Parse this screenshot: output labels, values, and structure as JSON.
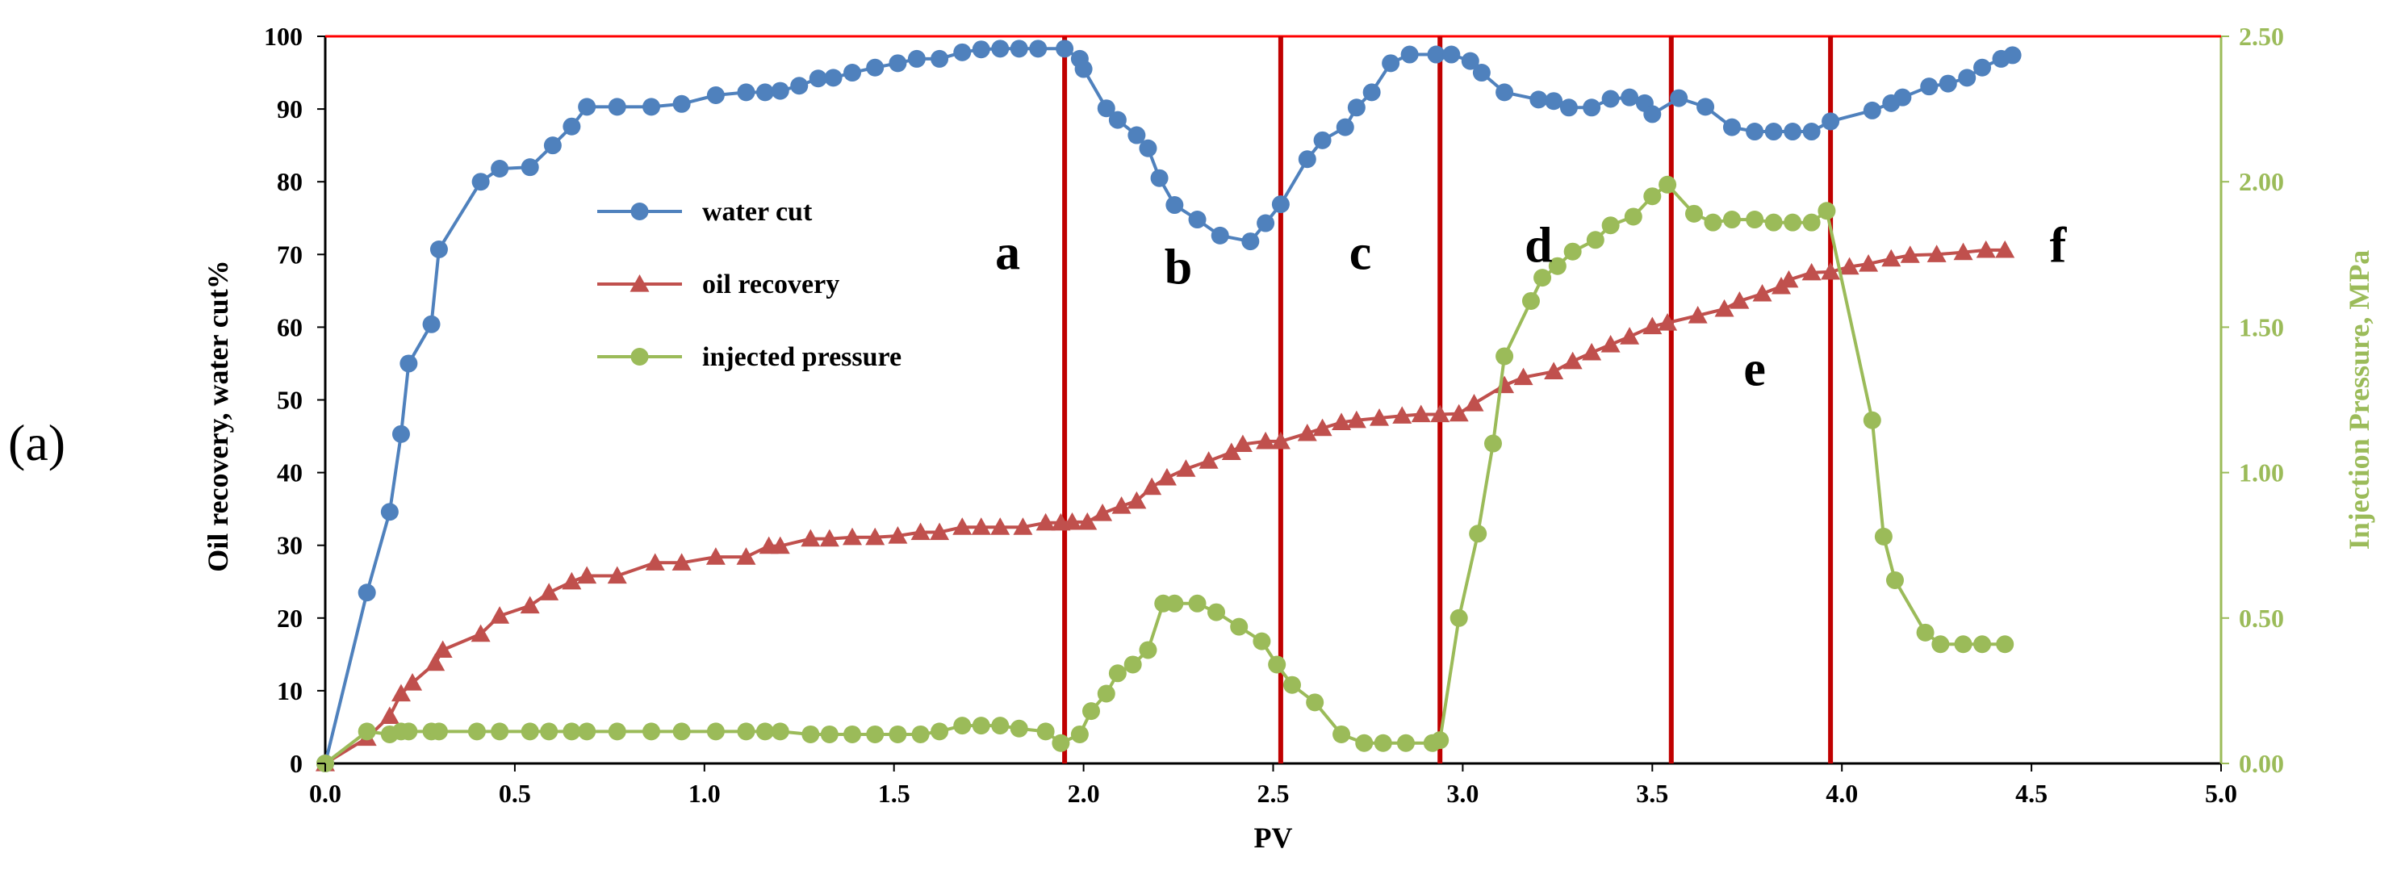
{
  "panel_label": "(a)",
  "chart_data": {
    "type": "line",
    "xlabel": "PV",
    "ylabel_left": "Oil recovery, water cut%",
    "ylabel_right": "Injection Pressure, MPa",
    "xlim": [
      0,
      5.0
    ],
    "ylim_left": [
      0,
      100
    ],
    "ylim_right": [
      0,
      2.5
    ],
    "x_ticks": [
      "0.0",
      "0.5",
      "1.0",
      "1.5",
      "2.0",
      "2.5",
      "3.0",
      "3.5",
      "4.0",
      "4.5",
      "5.0"
    ],
    "y_left_ticks": [
      "0",
      "10",
      "20",
      "30",
      "40",
      "50",
      "60",
      "70",
      "80",
      "90",
      "100"
    ],
    "y_right_ticks": [
      "0.00",
      "0.50",
      "1.00",
      "1.50",
      "2.00",
      "2.50"
    ],
    "colors": {
      "water_cut": "#4f81bd",
      "oil_recovery": "#c0504d",
      "pressure": "#9bbb59",
      "stage_line": "#c00000",
      "frame_top": "#ff0000"
    },
    "stage_boundaries": [
      1.95,
      2.52,
      2.94,
      3.55,
      3.97
    ],
    "stage_labels": [
      {
        "label": "a",
        "x": 1.8,
        "y": 68
      },
      {
        "label": "b",
        "x": 2.25,
        "y": 66
      },
      {
        "label": "c",
        "x": 2.73,
        "y": 68
      },
      {
        "label": "d",
        "x": 3.2,
        "y": 69
      },
      {
        "label": "e",
        "x": 3.77,
        "y": 52
      },
      {
        "label": "f",
        "x": 4.57,
        "y": 69
      }
    ],
    "legend": [
      {
        "key": "water_cut",
        "label": "water cut",
        "marker": "circle"
      },
      {
        "key": "oil_recovery",
        "label": "oil recovery",
        "marker": "triangle"
      },
      {
        "key": "pressure",
        "label": "injected pressure",
        "marker": "circle"
      }
    ],
    "series": [
      {
        "key": "water_cut",
        "name": "water cut",
        "axis": "left",
        "marker": "circle",
        "points": [
          [
            0.0,
            0
          ],
          [
            0.11,
            23.5
          ],
          [
            0.17,
            34.6
          ],
          [
            0.2,
            45.3
          ],
          [
            0.22,
            55
          ],
          [
            0.28,
            60.4
          ],
          [
            0.3,
            70.7
          ],
          [
            0.41,
            80
          ],
          [
            0.46,
            81.8
          ],
          [
            0.54,
            82
          ],
          [
            0.6,
            85
          ],
          [
            0.65,
            87.6
          ],
          [
            0.69,
            90.3
          ],
          [
            0.77,
            90.3
          ],
          [
            0.86,
            90.3
          ],
          [
            0.94,
            90.7
          ],
          [
            1.03,
            91.9
          ],
          [
            1.11,
            92.3
          ],
          [
            1.16,
            92.3
          ],
          [
            1.2,
            92.5
          ],
          [
            1.25,
            93.2
          ],
          [
            1.3,
            94.2
          ],
          [
            1.34,
            94.3
          ],
          [
            1.39,
            95
          ],
          [
            1.45,
            95.7
          ],
          [
            1.51,
            96.3
          ],
          [
            1.56,
            96.9
          ],
          [
            1.62,
            96.9
          ],
          [
            1.68,
            97.8
          ],
          [
            1.73,
            98.2
          ],
          [
            1.78,
            98.3
          ],
          [
            1.83,
            98.3
          ],
          [
            1.88,
            98.3
          ],
          [
            1.95,
            98.3
          ],
          [
            1.99,
            96.9
          ],
          [
            2.0,
            95.5
          ],
          [
            2.06,
            90.1
          ],
          [
            2.09,
            88.5
          ],
          [
            2.14,
            86.4
          ],
          [
            2.17,
            84.6
          ],
          [
            2.2,
            80.5
          ],
          [
            2.24,
            76.8
          ],
          [
            2.3,
            74.8
          ],
          [
            2.36,
            72.6
          ],
          [
            2.44,
            71.8
          ],
          [
            2.48,
            74.3
          ],
          [
            2.52,
            76.9
          ],
          [
            2.59,
            83.1
          ],
          [
            2.63,
            85.7
          ],
          [
            2.69,
            87.5
          ],
          [
            2.72,
            90.2
          ],
          [
            2.76,
            92.3
          ],
          [
            2.81,
            96.3
          ],
          [
            2.86,
            97.5
          ],
          [
            2.93,
            97.5
          ],
          [
            2.97,
            97.5
          ],
          [
            3.02,
            96.6
          ],
          [
            3.05,
            95
          ],
          [
            3.11,
            92.3
          ],
          [
            3.2,
            91.3
          ],
          [
            3.24,
            91.1
          ],
          [
            3.28,
            90.2
          ],
          [
            3.34,
            90.2
          ],
          [
            3.39,
            91.4
          ],
          [
            3.44,
            91.6
          ],
          [
            3.48,
            90.8
          ],
          [
            3.5,
            89.3
          ],
          [
            3.57,
            91.5
          ],
          [
            3.64,
            90.3
          ],
          [
            3.71,
            87.5
          ],
          [
            3.77,
            86.9
          ],
          [
            3.82,
            86.9
          ],
          [
            3.87,
            86.9
          ],
          [
            3.92,
            86.9
          ],
          [
            3.97,
            88.3
          ],
          [
            4.08,
            89.8
          ],
          [
            4.13,
            90.8
          ],
          [
            4.16,
            91.6
          ],
          [
            4.23,
            93.1
          ],
          [
            4.28,
            93.5
          ],
          [
            4.33,
            94.3
          ],
          [
            4.37,
            95.7
          ],
          [
            4.42,
            96.9
          ],
          [
            4.45,
            97.4
          ]
        ]
      },
      {
        "key": "oil_recovery",
        "name": "oil recovery",
        "axis": "left",
        "marker": "triangle",
        "points": [
          [
            0.0,
            0
          ],
          [
            0.11,
            3.5
          ],
          [
            0.17,
            6.5
          ],
          [
            0.2,
            9.6
          ],
          [
            0.23,
            11.1
          ],
          [
            0.29,
            13.8
          ],
          [
            0.31,
            15.6
          ],
          [
            0.41,
            17.8
          ],
          [
            0.46,
            20.3
          ],
          [
            0.54,
            21.7
          ],
          [
            0.59,
            23.5
          ],
          [
            0.65,
            25
          ],
          [
            0.69,
            25.8
          ],
          [
            0.77,
            25.8
          ],
          [
            0.87,
            27.6
          ],
          [
            0.94,
            27.6
          ],
          [
            1.03,
            28.4
          ],
          [
            1.11,
            28.4
          ],
          [
            1.17,
            29.9
          ],
          [
            1.2,
            29.9
          ],
          [
            1.28,
            30.9
          ],
          [
            1.33,
            30.9
          ],
          [
            1.39,
            31.1
          ],
          [
            1.45,
            31.1
          ],
          [
            1.51,
            31.3
          ],
          [
            1.57,
            31.8
          ],
          [
            1.62,
            31.8
          ],
          [
            1.68,
            32.5
          ],
          [
            1.73,
            32.5
          ],
          [
            1.78,
            32.5
          ],
          [
            1.84,
            32.5
          ],
          [
            1.9,
            33.1
          ],
          [
            1.94,
            33.1
          ],
          [
            1.97,
            33.2
          ],
          [
            2.01,
            33.2
          ],
          [
            2.05,
            34.4
          ],
          [
            2.1,
            35.4
          ],
          [
            2.14,
            36.1
          ],
          [
            2.18,
            38
          ],
          [
            2.22,
            39.3
          ],
          [
            2.27,
            40.5
          ],
          [
            2.33,
            41.6
          ],
          [
            2.39,
            42.8
          ],
          [
            2.42,
            43.9
          ],
          [
            2.48,
            44.3
          ],
          [
            2.52,
            44.3
          ],
          [
            2.59,
            45.4
          ],
          [
            2.63,
            46.1
          ],
          [
            2.68,
            46.9
          ],
          [
            2.72,
            47.2
          ],
          [
            2.78,
            47.5
          ],
          [
            2.84,
            47.8
          ],
          [
            2.89,
            48
          ],
          [
            2.94,
            48
          ],
          [
            2.99,
            48.1
          ],
          [
            3.03,
            49.5
          ],
          [
            3.11,
            52
          ],
          [
            3.16,
            53.1
          ],
          [
            3.24,
            53.9
          ],
          [
            3.29,
            55.3
          ],
          [
            3.34,
            56.5
          ],
          [
            3.39,
            57.6
          ],
          [
            3.44,
            58.7
          ],
          [
            3.5,
            60.1
          ],
          [
            3.54,
            60.6
          ],
          [
            3.62,
            61.6
          ],
          [
            3.69,
            62.5
          ],
          [
            3.73,
            63.6
          ],
          [
            3.79,
            64.6
          ],
          [
            3.84,
            65.6
          ],
          [
            3.86,
            66.5
          ],
          [
            3.92,
            67.5
          ],
          [
            3.97,
            67.6
          ],
          [
            4.02,
            68.3
          ],
          [
            4.07,
            68.7
          ],
          [
            4.13,
            69.4
          ],
          [
            4.18,
            69.9
          ],
          [
            4.25,
            70
          ],
          [
            4.32,
            70.3
          ],
          [
            4.38,
            70.6
          ],
          [
            4.43,
            70.6
          ]
        ]
      },
      {
        "key": "pressure",
        "name": "injected pressure",
        "axis": "right",
        "marker": "circle",
        "points": [
          [
            0.0,
            0.0
          ],
          [
            0.11,
            0.11
          ],
          [
            0.17,
            0.1
          ],
          [
            0.2,
            0.11
          ],
          [
            0.22,
            0.11
          ],
          [
            0.28,
            0.11
          ],
          [
            0.3,
            0.11
          ],
          [
            0.4,
            0.11
          ],
          [
            0.46,
            0.11
          ],
          [
            0.54,
            0.11
          ],
          [
            0.59,
            0.11
          ],
          [
            0.65,
            0.11
          ],
          [
            0.69,
            0.11
          ],
          [
            0.77,
            0.11
          ],
          [
            0.86,
            0.11
          ],
          [
            0.94,
            0.11
          ],
          [
            1.03,
            0.11
          ],
          [
            1.11,
            0.11
          ],
          [
            1.16,
            0.11
          ],
          [
            1.2,
            0.11
          ],
          [
            1.28,
            0.1
          ],
          [
            1.33,
            0.1
          ],
          [
            1.39,
            0.1
          ],
          [
            1.45,
            0.1
          ],
          [
            1.51,
            0.1
          ],
          [
            1.57,
            0.1
          ],
          [
            1.62,
            0.11
          ],
          [
            1.68,
            0.13
          ],
          [
            1.73,
            0.13
          ],
          [
            1.78,
            0.13
          ],
          [
            1.83,
            0.12
          ],
          [
            1.9,
            0.11
          ],
          [
            1.94,
            0.07
          ],
          [
            1.99,
            0.1
          ],
          [
            2.02,
            0.18
          ],
          [
            2.06,
            0.24
          ],
          [
            2.09,
            0.31
          ],
          [
            2.13,
            0.34
          ],
          [
            2.17,
            0.39
          ],
          [
            2.21,
            0.55
          ],
          [
            2.24,
            0.55
          ],
          [
            2.3,
            0.55
          ],
          [
            2.35,
            0.52
          ],
          [
            2.41,
            0.47
          ],
          [
            2.47,
            0.42
          ],
          [
            2.51,
            0.34
          ],
          [
            2.55,
            0.27
          ],
          [
            2.61,
            0.21
          ],
          [
            2.68,
            0.1
          ],
          [
            2.74,
            0.07
          ],
          [
            2.79,
            0.07
          ],
          [
            2.85,
            0.07
          ],
          [
            2.92,
            0.07
          ],
          [
            2.94,
            0.08
          ],
          [
            2.99,
            0.5
          ],
          [
            3.04,
            0.79
          ],
          [
            3.08,
            1.1
          ],
          [
            3.11,
            1.4
          ],
          [
            3.18,
            1.59
          ],
          [
            3.21,
            1.67
          ],
          [
            3.25,
            1.71
          ],
          [
            3.29,
            1.76
          ],
          [
            3.35,
            1.8
          ],
          [
            3.39,
            1.85
          ],
          [
            3.45,
            1.88
          ],
          [
            3.5,
            1.95
          ],
          [
            3.54,
            1.99
          ],
          [
            3.61,
            1.89
          ],
          [
            3.66,
            1.86
          ],
          [
            3.71,
            1.87
          ],
          [
            3.77,
            1.87
          ],
          [
            3.82,
            1.86
          ],
          [
            3.87,
            1.86
          ],
          [
            3.92,
            1.86
          ],
          [
            3.96,
            1.9
          ],
          [
            4.08,
            1.18
          ],
          [
            4.11,
            0.78
          ],
          [
            4.14,
            0.63
          ],
          [
            4.22,
            0.45
          ],
          [
            4.26,
            0.41
          ],
          [
            4.32,
            0.41
          ],
          [
            4.37,
            0.41
          ],
          [
            4.43,
            0.41
          ]
        ]
      }
    ]
  }
}
